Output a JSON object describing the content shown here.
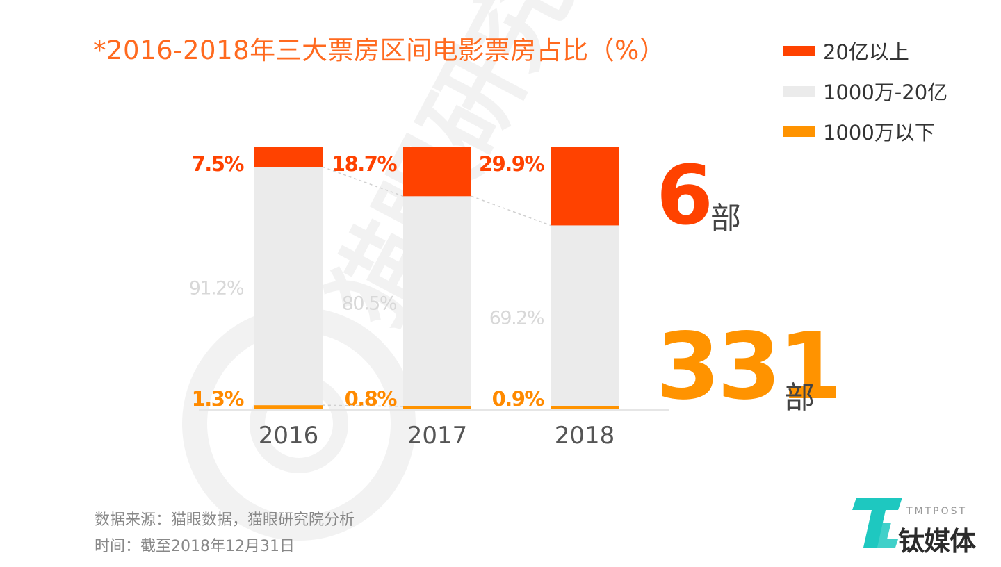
{
  "title": "*2016-2018年三大票房区间电影票房占比（%）",
  "legend": [
    {
      "label": "20亿以上",
      "color": "#ff4200"
    },
    {
      "label": "1000万-20亿",
      "color": "#ebebeb"
    },
    {
      "label": "1000万以下",
      "color": "#ff9300"
    }
  ],
  "chart_data": {
    "type": "bar",
    "stacked": true,
    "categories": [
      "2016",
      "2017",
      "2018"
    ],
    "series": [
      {
        "name": "1000万以下",
        "values": [
          1.3,
          0.8,
          0.9
        ],
        "labels": [
          "1.3%",
          "0.8%",
          "0.9%"
        ],
        "color": "#ff9300",
        "label_color": "#ff8a00"
      },
      {
        "name": "1000万-20亿",
        "values": [
          91.2,
          80.5,
          69.2
        ],
        "labels": [
          "91.2%",
          "80.5%",
          "69.2%"
        ],
        "color": "#ebebeb",
        "label_color": "#d8d8d8"
      },
      {
        "name": "20亿以上",
        "values": [
          7.5,
          18.7,
          29.9
        ],
        "labels": [
          "7.5%",
          "18.7%",
          "29.9%"
        ],
        "color": "#ff4200",
        "label_color": "#ff4200"
      }
    ],
    "ylim": [
      0,
      100
    ],
    "legend_position": "top-right"
  },
  "counts": {
    "top": {
      "value": "6",
      "unit": "部",
      "color": "#ff4200"
    },
    "bottom": {
      "value": "331",
      "unit": "部",
      "color": "#ff9300"
    }
  },
  "footnote": {
    "source": "数据来源：猫眼数据，猫眼研究院分析",
    "time": "时间：截至2018年12月31日"
  },
  "watermark": {
    "text": "猫眼研究院"
  },
  "logo": {
    "text": "钛媒体",
    "brand": "TMTPOST",
    "color": "#1ec8c0"
  }
}
